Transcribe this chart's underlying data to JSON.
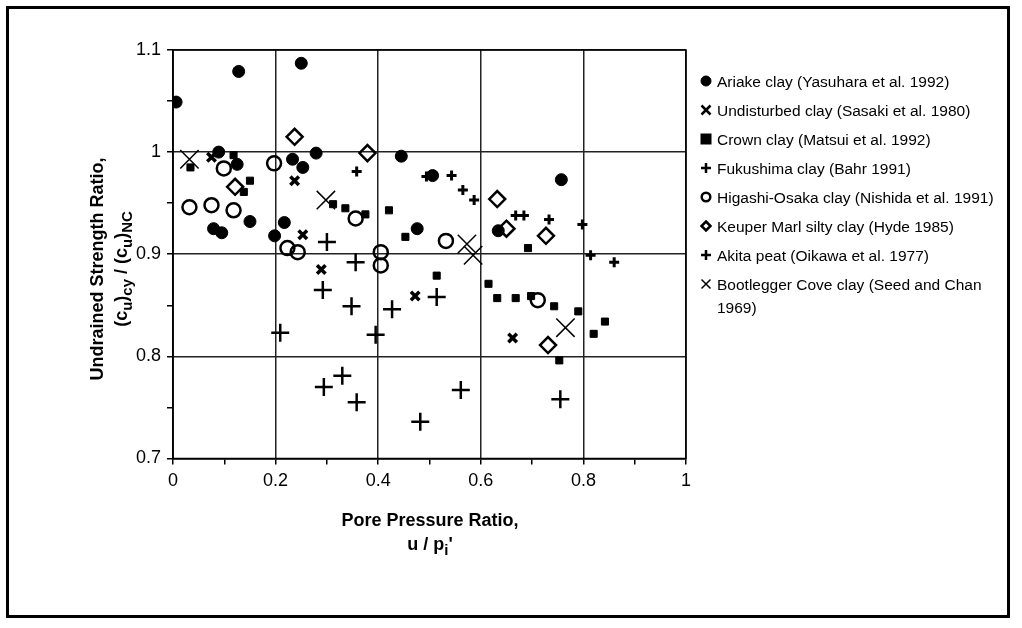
{
  "chart_data": {
    "type": "scatter",
    "xlabel": "Pore Pressure Ratio,\nu / p$_{i}$'",
    "ylabel": "Undrained Strength Ratio,\n(c$_{u}$)$_{cy}$ / (c$_{u}$)$_{NC}$",
    "xlim": [
      0,
      1
    ],
    "ylim": [
      0.7,
      1.1
    ],
    "xticks": [
      0,
      {
        "value": 0.1,
        "label": null
      },
      0.2,
      {
        "value": 0.3,
        "label": null
      },
      0.4,
      {
        "value": 0.5,
        "label": null
      },
      0.6,
      {
        "value": 0.7,
        "label": null
      },
      0.8,
      {
        "value": 0.9,
        "label": null
      },
      1
    ],
    "yticks": [
      0.7,
      {
        "value": 0.75,
        "label": null
      },
      0.8,
      {
        "value": 0.85,
        "label": null
      },
      0.9,
      {
        "value": 0.95,
        "label": null
      },
      1,
      {
        "value": 1.05,
        "label": null
      },
      1.1
    ],
    "grid": true,
    "legend": "right",
    "series": [
      {
        "name": "Ariake clay (Yasuhara et al. 1992)",
        "color": "#000000",
        "marker": "circle",
        "x": [
          0.006,
          0.128,
          0.25,
          0.089,
          0.125,
          0.233,
          0.253,
          0.279,
          0.445,
          0.079,
          0.095,
          0.15,
          0.217,
          0.198,
          0.476,
          0.506,
          0.757,
          0.634
        ],
        "values": [
          1.049,
          1.079,
          1.087,
          1.0,
          0.988,
          0.993,
          0.985,
          0.999,
          0.996,
          0.925,
          0.921,
          0.932,
          0.931,
          0.918,
          0.925,
          0.977,
          0.973,
          0.923
        ]
      },
      {
        "name": "Undisturbed clay (Sasaki et al. 1980)",
        "color": "#000000",
        "marker": "cross",
        "x": [
          0.075,
          0.237,
          0.253,
          0.289,
          0.472,
          0.662
        ],
        "values": [
          0.995,
          0.972,
          0.919,
          0.885,
          0.859,
          0.818
        ]
      },
      {
        "name": "Crown clay (Matsui et al. 1992)",
        "color": "#000000",
        "marker": "square",
        "x": [
          0.034,
          0.118,
          0.15,
          0.138,
          0.312,
          0.336,
          0.375,
          0.421,
          0.453,
          0.692,
          0.514,
          0.615,
          0.632,
          0.668,
          0.698,
          0.743,
          0.79,
          0.842,
          0.82,
          0.753
        ],
        "values": [
          0.985,
          0.997,
          0.972,
          0.961,
          0.949,
          0.945,
          0.939,
          0.943,
          0.917,
          0.906,
          0.879,
          0.871,
          0.857,
          0.857,
          0.859,
          0.849,
          0.844,
          0.834,
          0.822,
          0.796
        ]
      },
      {
        "name": "Fukushima clay (Bahr 1991)",
        "color": "#000000",
        "marker": "cross",
        "x": [
          0.358,
          0.494,
          0.543,
          0.565,
          0.587,
          0.668,
          0.684,
          0.733,
          0.798,
          0.814,
          0.86
        ],
        "values": [
          0.981,
          0.976,
          0.977,
          0.963,
          0.953,
          0.938,
          0.938,
          0.934,
          0.929,
          0.899,
          0.892
        ]
      },
      {
        "name": "Higashi-Osaka clay (Nishida et al. 1991)",
        "color": "#000000",
        "marker": "circle",
        "x": [
          0.099,
          0.197,
          0.032,
          0.075,
          0.118,
          0.223,
          0.243,
          0.405,
          0.405,
          0.532,
          0.356,
          0.711
        ],
        "values": [
          0.984,
          0.989,
          0.946,
          0.948,
          0.943,
          0.906,
          0.902,
          0.902,
          0.889,
          0.913,
          0.935,
          0.855
        ]
      },
      {
        "name": "Keuper Marl silty clay (Hyde 1985)",
        "color": "#000000",
        "marker": "diamond",
        "x": [
          0.237,
          0.121,
          0.379,
          0.632,
          0.65,
          0.727,
          0.731
        ],
        "values": [
          1.015,
          0.966,
          0.999,
          0.954,
          0.925,
          0.918,
          0.811
        ]
      },
      {
        "name": "Akita peat (Oikawa et al. 1977)",
        "color": "#000000",
        "marker": "cross",
        "x": [
          0.3,
          0.209,
          0.292,
          0.348,
          0.356,
          0.395,
          0.427,
          0.33,
          0.294,
          0.358,
          0.482,
          0.514,
          0.561,
          0.755
        ],
        "values": [
          0.912,
          0.823,
          0.865,
          0.849,
          0.892,
          0.821,
          0.846,
          0.781,
          0.77,
          0.755,
          0.736,
          0.858,
          0.767,
          0.758
        ]
      },
      {
        "name": "Bootlegger Cove clay (Seed and Chan 1969)",
        "color": "#000000",
        "marker": "cross",
        "x": [
          0.032,
          0.298,
          0.573,
          0.585,
          0.765
        ],
        "values": [
          0.993,
          0.953,
          0.91,
          0.899,
          0.828
        ]
      }
    ]
  }
}
